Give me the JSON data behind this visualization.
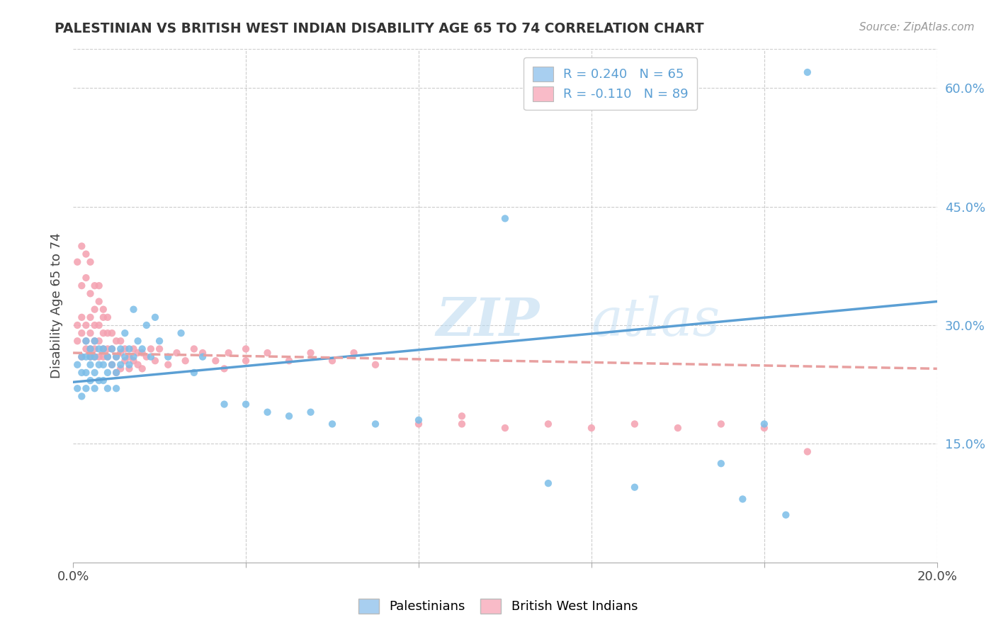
{
  "title": "PALESTINIAN VS BRITISH WEST INDIAN DISABILITY AGE 65 TO 74 CORRELATION CHART",
  "source": "Source: ZipAtlas.com",
  "ylabel": "Disability Age 65 to 74",
  "xlim": [
    0.0,
    0.2
  ],
  "ylim": [
    0.0,
    0.65
  ],
  "xtick_positions": [
    0.0,
    0.04,
    0.08,
    0.12,
    0.16,
    0.2
  ],
  "xtick_labels": [
    "0.0%",
    "",
    "",
    "",
    "",
    "20.0%"
  ],
  "ytick_positions": [
    0.15,
    0.3,
    0.45,
    0.6
  ],
  "ytick_labels": [
    "15.0%",
    "30.0%",
    "45.0%",
    "60.0%"
  ],
  "palestinians_R": 0.24,
  "palestinians_N": 65,
  "bwi_R": -0.11,
  "bwi_N": 89,
  "palestinians_color": "#7bbde8",
  "bwi_color": "#f4a0b0",
  "palestinians_fill": "#a8cff0",
  "bwi_fill": "#f9bbc8",
  "line_pal_color": "#5b9fd4",
  "line_bwi_color": "#e8a0a0",
  "background": "#ffffff",
  "grid_color": "#cccccc",
  "watermark": "ZIPatlas",
  "legend_label_1": "R = 0.240   N = 65",
  "legend_label_2": "R = -0.110   N = 89",
  "legend_text_color": "#5b9fd4",
  "palestinians_x": [
    0.001,
    0.001,
    0.002,
    0.002,
    0.002,
    0.003,
    0.003,
    0.003,
    0.003,
    0.004,
    0.004,
    0.004,
    0.004,
    0.005,
    0.005,
    0.005,
    0.005,
    0.006,
    0.006,
    0.006,
    0.007,
    0.007,
    0.007,
    0.008,
    0.008,
    0.008,
    0.009,
    0.009,
    0.01,
    0.01,
    0.01,
    0.011,
    0.011,
    0.012,
    0.012,
    0.013,
    0.013,
    0.014,
    0.014,
    0.015,
    0.016,
    0.017,
    0.018,
    0.019,
    0.02,
    0.022,
    0.025,
    0.028,
    0.03,
    0.035,
    0.04,
    0.045,
    0.05,
    0.055,
    0.06,
    0.07,
    0.08,
    0.1,
    0.11,
    0.13,
    0.15,
    0.16,
    0.17,
    0.155,
    0.165
  ],
  "palestinians_y": [
    0.25,
    0.22,
    0.24,
    0.26,
    0.21,
    0.24,
    0.26,
    0.28,
    0.22,
    0.25,
    0.27,
    0.23,
    0.26,
    0.24,
    0.28,
    0.22,
    0.26,
    0.25,
    0.27,
    0.23,
    0.25,
    0.23,
    0.27,
    0.24,
    0.26,
    0.22,
    0.25,
    0.27,
    0.24,
    0.26,
    0.22,
    0.25,
    0.27,
    0.26,
    0.29,
    0.25,
    0.27,
    0.32,
    0.26,
    0.28,
    0.27,
    0.3,
    0.26,
    0.31,
    0.28,
    0.26,
    0.29,
    0.24,
    0.26,
    0.2,
    0.2,
    0.19,
    0.185,
    0.19,
    0.175,
    0.175,
    0.18,
    0.435,
    0.1,
    0.095,
    0.125,
    0.175,
    0.62,
    0.08,
    0.06
  ],
  "bwi_x": [
    0.001,
    0.001,
    0.001,
    0.002,
    0.002,
    0.002,
    0.002,
    0.002,
    0.003,
    0.003,
    0.003,
    0.003,
    0.003,
    0.004,
    0.004,
    0.004,
    0.004,
    0.004,
    0.004,
    0.005,
    0.005,
    0.005,
    0.005,
    0.005,
    0.005,
    0.006,
    0.006,
    0.006,
    0.006,
    0.006,
    0.007,
    0.007,
    0.007,
    0.007,
    0.007,
    0.008,
    0.008,
    0.008,
    0.008,
    0.009,
    0.009,
    0.009,
    0.01,
    0.01,
    0.01,
    0.011,
    0.011,
    0.011,
    0.012,
    0.012,
    0.013,
    0.013,
    0.014,
    0.014,
    0.015,
    0.015,
    0.016,
    0.016,
    0.017,
    0.018,
    0.019,
    0.02,
    0.022,
    0.024,
    0.026,
    0.028,
    0.03,
    0.033,
    0.036,
    0.04,
    0.045,
    0.05,
    0.055,
    0.06,
    0.065,
    0.07,
    0.08,
    0.09,
    0.1,
    0.11,
    0.12,
    0.13,
    0.14,
    0.15,
    0.16,
    0.17,
    0.09,
    0.035,
    0.04
  ],
  "bwi_y": [
    0.28,
    0.3,
    0.38,
    0.26,
    0.29,
    0.35,
    0.31,
    0.4,
    0.27,
    0.3,
    0.36,
    0.28,
    0.39,
    0.26,
    0.29,
    0.31,
    0.34,
    0.27,
    0.38,
    0.28,
    0.3,
    0.26,
    0.32,
    0.35,
    0.27,
    0.28,
    0.3,
    0.26,
    0.33,
    0.35,
    0.26,
    0.29,
    0.31,
    0.27,
    0.32,
    0.27,
    0.29,
    0.26,
    0.31,
    0.27,
    0.25,
    0.29,
    0.26,
    0.28,
    0.24,
    0.265,
    0.245,
    0.28,
    0.255,
    0.27,
    0.26,
    0.245,
    0.255,
    0.27,
    0.25,
    0.265,
    0.245,
    0.265,
    0.26,
    0.27,
    0.255,
    0.27,
    0.25,
    0.265,
    0.255,
    0.27,
    0.265,
    0.255,
    0.265,
    0.255,
    0.265,
    0.255,
    0.265,
    0.255,
    0.265,
    0.25,
    0.175,
    0.175,
    0.17,
    0.175,
    0.17,
    0.175,
    0.17,
    0.175,
    0.17,
    0.14,
    0.185,
    0.245,
    0.27
  ]
}
